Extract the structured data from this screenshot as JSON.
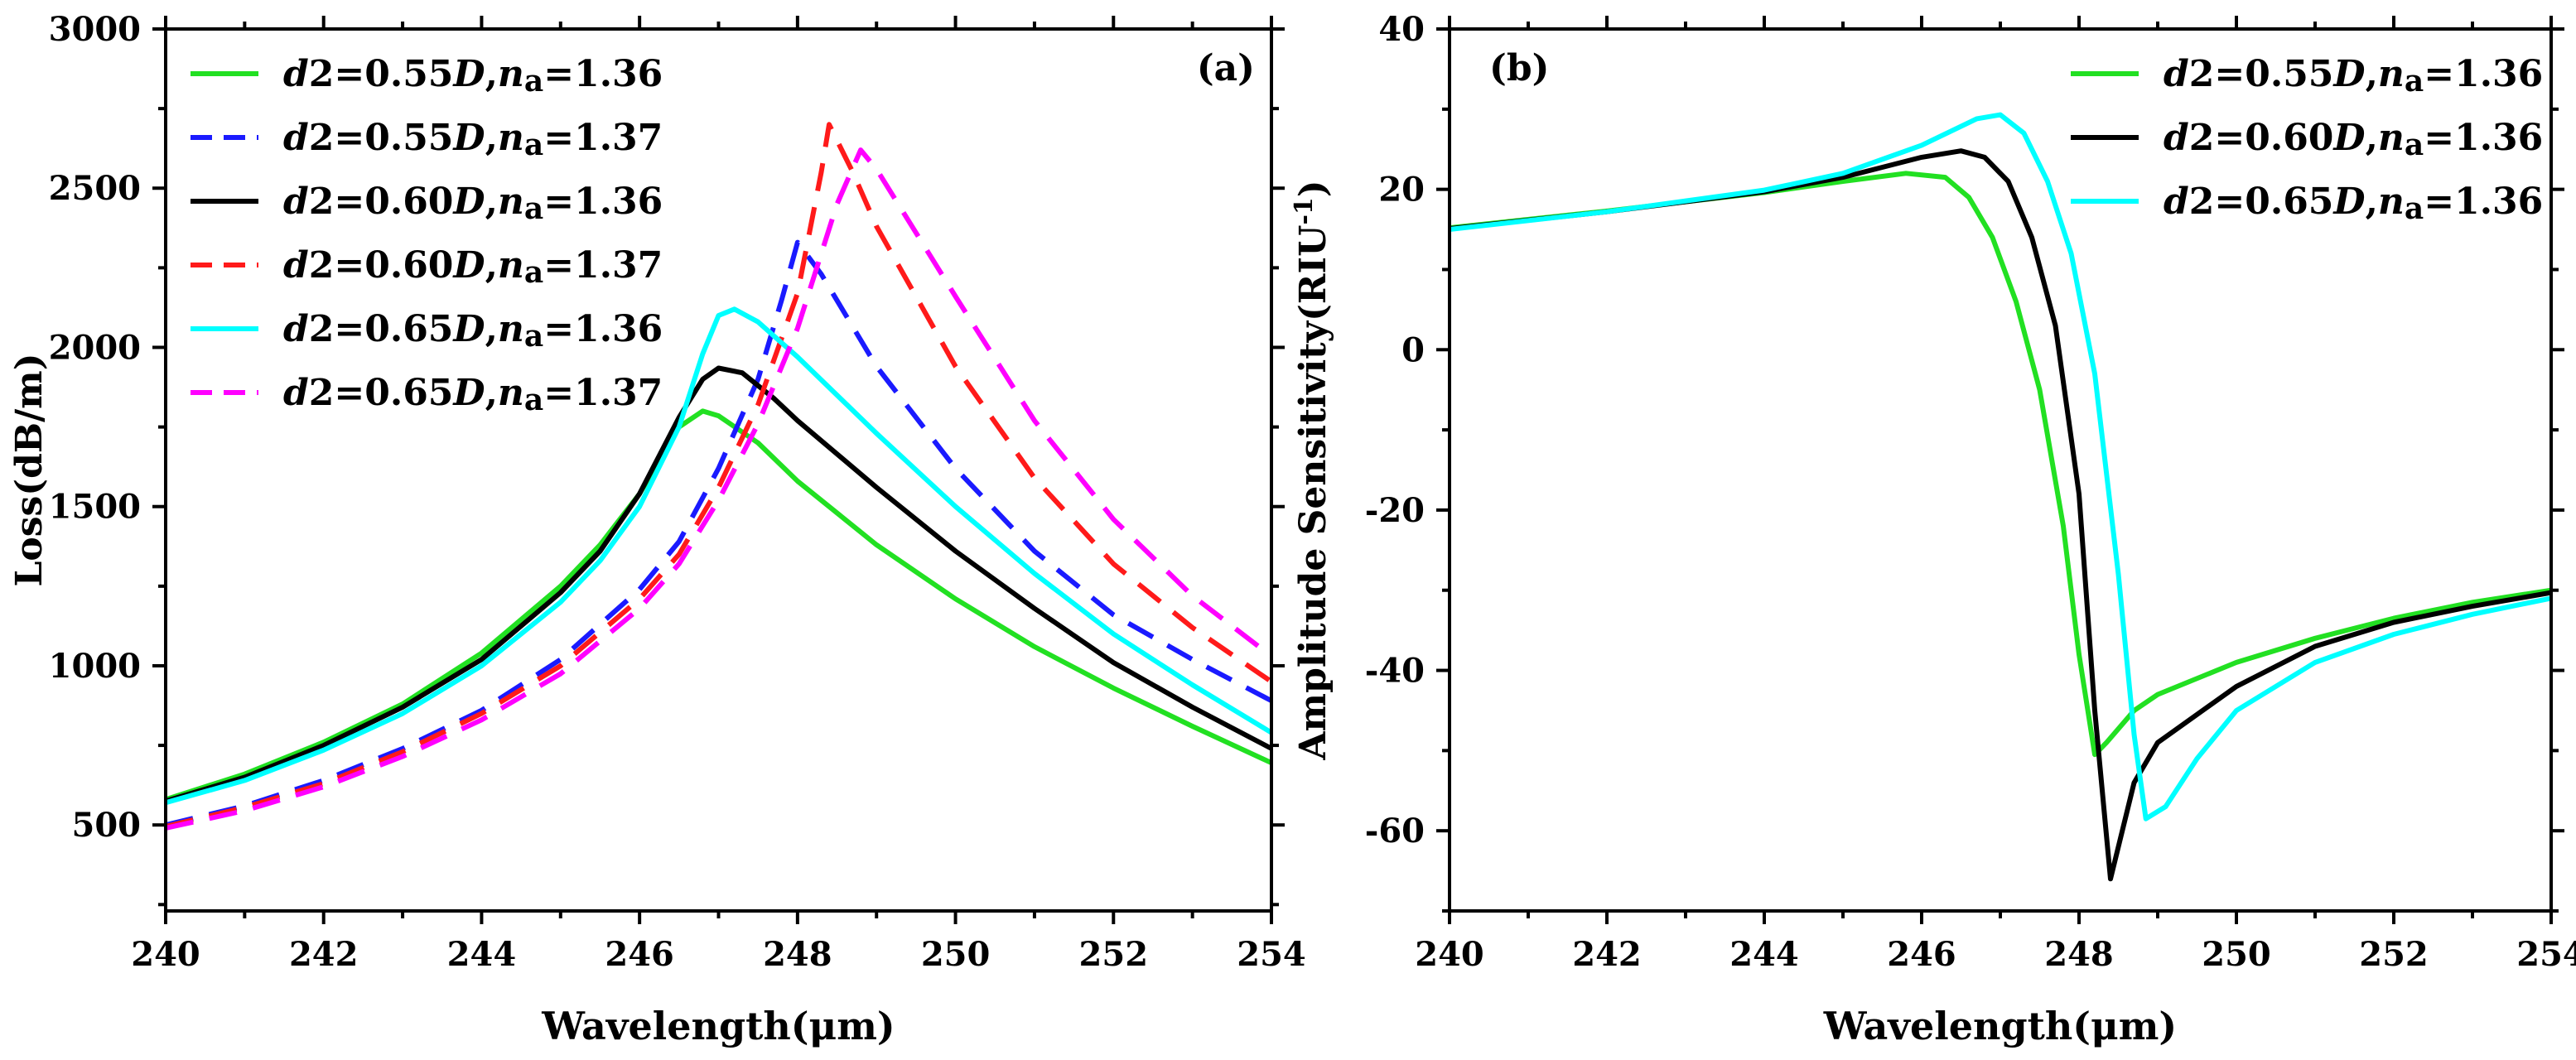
{
  "chart_data": [
    {
      "type": "line",
      "panel_label": "(a)",
      "xlabel": "Wavelength(μm)",
      "ylabel": "Loss(dB/m)",
      "xlim": [
        240,
        254
      ],
      "ylim": [
        230,
        3000
      ],
      "xticks": [
        240,
        242,
        244,
        246,
        248,
        250,
        252,
        254
      ],
      "yticks": [
        500,
        1000,
        1500,
        2000,
        2500,
        3000
      ],
      "legend_position": "top-left",
      "series": [
        {
          "name": "d2=0.55D,na=1.36",
          "d": "0.55D",
          "n": "1.36",
          "color": "#22e022",
          "dash": "solid",
          "points": [
            [
              240,
              580
            ],
            [
              241,
              660
            ],
            [
              242,
              760
            ],
            [
              243,
              880
            ],
            [
              244,
              1040
            ],
            [
              245,
              1250
            ],
            [
              245.5,
              1380
            ],
            [
              246,
              1540
            ],
            [
              246.5,
              1750
            ],
            [
              246.8,
              1800
            ],
            [
              247,
              1785
            ],
            [
              247.5,
              1700
            ],
            [
              248,
              1580
            ],
            [
              249,
              1380
            ],
            [
              250,
              1210
            ],
            [
              251,
              1060
            ],
            [
              252,
              930
            ],
            [
              253,
              810
            ],
            [
              254,
              695
            ]
          ]
        },
        {
          "name": "d2=0.55D,na=1.37",
          "d": "0.55D",
          "n": "1.37",
          "color": "#1a1aff",
          "dash": "dash",
          "points": [
            [
              240,
              500
            ],
            [
              241,
              560
            ],
            [
              242,
              640
            ],
            [
              243,
              740
            ],
            [
              244,
              860
            ],
            [
              245,
              1020
            ],
            [
              246,
              1240
            ],
            [
              246.5,
              1390
            ],
            [
              247,
              1620
            ],
            [
              247.5,
              1900
            ],
            [
              247.8,
              2150
            ],
            [
              248,
              2330
            ],
            [
              248.3,
              2230
            ],
            [
              249,
              1940
            ],
            [
              250,
              1620
            ],
            [
              251,
              1360
            ],
            [
              252,
              1160
            ],
            [
              253,
              1020
            ],
            [
              254,
              890
            ]
          ]
        },
        {
          "name": "d2=0.60D,na=1.36",
          "d": "0.60D",
          "n": "1.36",
          "color": "#000000",
          "dash": "solid",
          "points": [
            [
              240,
              575
            ],
            [
              241,
              650
            ],
            [
              242,
              750
            ],
            [
              243,
              870
            ],
            [
              244,
              1020
            ],
            [
              245,
              1230
            ],
            [
              245.5,
              1360
            ],
            [
              246,
              1540
            ],
            [
              246.5,
              1780
            ],
            [
              246.8,
              1900
            ],
            [
              247,
              1935
            ],
            [
              247.3,
              1920
            ],
            [
              247.7,
              1840
            ],
            [
              248,
              1770
            ],
            [
              249,
              1560
            ],
            [
              250,
              1360
            ],
            [
              251,
              1180
            ],
            [
              252,
              1010
            ],
            [
              253,
              870
            ],
            [
              254,
              740
            ]
          ]
        },
        {
          "name": "d2=0.60D,na=1.37",
          "d": "0.60D",
          "n": "1.37",
          "color": "#ff1a1a",
          "dash": "dash",
          "points": [
            [
              240,
              495
            ],
            [
              241,
              555
            ],
            [
              242,
              630
            ],
            [
              243,
              730
            ],
            [
              244,
              850
            ],
            [
              245,
              1000
            ],
            [
              246,
              1210
            ],
            [
              246.5,
              1350
            ],
            [
              247,
              1560
            ],
            [
              247.5,
              1820
            ],
            [
              248,
              2170
            ],
            [
              248.3,
              2550
            ],
            [
              248.4,
              2700
            ],
            [
              248.7,
              2550
            ],
            [
              249,
              2380
            ],
            [
              250,
              1940
            ],
            [
              251,
              1590
            ],
            [
              252,
              1320
            ],
            [
              253,
              1120
            ],
            [
              254,
              950
            ]
          ]
        },
        {
          "name": "d2=0.65D,na=1.36",
          "d": "0.65D",
          "n": "1.36",
          "color": "#00ffff",
          "dash": "solid",
          "points": [
            [
              240,
              570
            ],
            [
              241,
              640
            ],
            [
              242,
              735
            ],
            [
              243,
              850
            ],
            [
              244,
              1000
            ],
            [
              245,
              1200
            ],
            [
              245.5,
              1330
            ],
            [
              246,
              1500
            ],
            [
              246.5,
              1750
            ],
            [
              246.8,
              1980
            ],
            [
              247,
              2100
            ],
            [
              247.2,
              2120
            ],
            [
              247.5,
              2080
            ],
            [
              248,
              1970
            ],
            [
              249,
              1730
            ],
            [
              250,
              1500
            ],
            [
              251,
              1290
            ],
            [
              252,
              1100
            ],
            [
              253,
              940
            ],
            [
              254,
              790
            ]
          ]
        },
        {
          "name": "d2=0.65D,na=1.37",
          "d": "0.65D",
          "n": "1.37",
          "color": "#ff00ff",
          "dash": "dash",
          "points": [
            [
              240,
              490
            ],
            [
              241,
              545
            ],
            [
              242,
              620
            ],
            [
              243,
              715
            ],
            [
              244,
              830
            ],
            [
              245,
              975
            ],
            [
              246,
              1180
            ],
            [
              246.5,
              1320
            ],
            [
              247,
              1520
            ],
            [
              247.5,
              1760
            ],
            [
              248,
              2060
            ],
            [
              248.5,
              2450
            ],
            [
              248.8,
              2620
            ],
            [
              249,
              2560
            ],
            [
              250,
              2160
            ],
            [
              251,
              1770
            ],
            [
              252,
              1460
            ],
            [
              253,
              1220
            ],
            [
              254,
              1030
            ]
          ]
        }
      ]
    },
    {
      "type": "line",
      "panel_label": "(b)",
      "xlabel": "Wavelength(μm)",
      "ylabel": "Amplitude Sensitivity(RIU",
      "ylabel_sup": "-1",
      "ylabel_end": ")",
      "xlim": [
        240,
        254
      ],
      "ylim": [
        -70,
        40
      ],
      "xticks": [
        240,
        242,
        244,
        246,
        248,
        250,
        252,
        254
      ],
      "yticks": [
        -60,
        -40,
        -20,
        0,
        20,
        40
      ],
      "legend_position": "top-right",
      "series": [
        {
          "name": "d2=0.55D,na=1.36",
          "d": "0.55D",
          "n": "1.36",
          "color": "#22e022",
          "dash": "solid",
          "points": [
            [
              240,
              15.2
            ],
            [
              242,
              17.3
            ],
            [
              244,
              19.6
            ],
            [
              245,
              21.0
            ],
            [
              245.8,
              22.0
            ],
            [
              246.3,
              21.5
            ],
            [
              246.6,
              19
            ],
            [
              246.9,
              14
            ],
            [
              247.2,
              6
            ],
            [
              247.5,
              -5
            ],
            [
              247.8,
              -22
            ],
            [
              248,
              -38
            ],
            [
              248.2,
              -50.5
            ],
            [
              248.35,
              -49
            ],
            [
              248.7,
              -45
            ],
            [
              249,
              -43
            ],
            [
              250,
              -39
            ],
            [
              251,
              -36
            ],
            [
              252,
              -33.5
            ],
            [
              253,
              -31.5
            ],
            [
              254,
              -30
            ]
          ]
        },
        {
          "name": "d2=0.60D,na=1.36",
          "d": "0.60D",
          "n": "1.36",
          "color": "#000000",
          "dash": "solid",
          "points": [
            [
              240,
              15.1
            ],
            [
              242,
              17.2
            ],
            [
              244,
              19.7
            ],
            [
              245,
              21.5
            ],
            [
              246,
              24.0
            ],
            [
              246.5,
              24.8
            ],
            [
              246.8,
              24
            ],
            [
              247.1,
              21
            ],
            [
              247.4,
              14
            ],
            [
              247.7,
              3
            ],
            [
              248,
              -18
            ],
            [
              248.2,
              -45
            ],
            [
              248.4,
              -66
            ],
            [
              248.7,
              -54
            ],
            [
              249,
              -49
            ],
            [
              250,
              -42
            ],
            [
              251,
              -37
            ],
            [
              252,
              -34
            ],
            [
              253,
              -32
            ],
            [
              254,
              -30.3
            ]
          ]
        },
        {
          "name": "d2=0.65D,na=1.36",
          "d": "0.65D",
          "n": "1.36",
          "color": "#00ffff",
          "dash": "solid",
          "points": [
            [
              240,
              15.0
            ],
            [
              242,
              17.2
            ],
            [
              244,
              19.9
            ],
            [
              245,
              22.0
            ],
            [
              246,
              25.5
            ],
            [
              246.7,
              28.8
            ],
            [
              247,
              29.3
            ],
            [
              247.3,
              27
            ],
            [
              247.6,
              21
            ],
            [
              247.9,
              12
            ],
            [
              248.2,
              -3
            ],
            [
              248.5,
              -28
            ],
            [
              248.7,
              -48
            ],
            [
              248.85,
              -58.5
            ],
            [
              249.1,
              -57
            ],
            [
              249.5,
              -51
            ],
            [
              250,
              -45
            ],
            [
              251,
              -39
            ],
            [
              252,
              -35.5
            ],
            [
              253,
              -33
            ],
            [
              254,
              -31
            ]
          ]
        }
      ]
    }
  ]
}
